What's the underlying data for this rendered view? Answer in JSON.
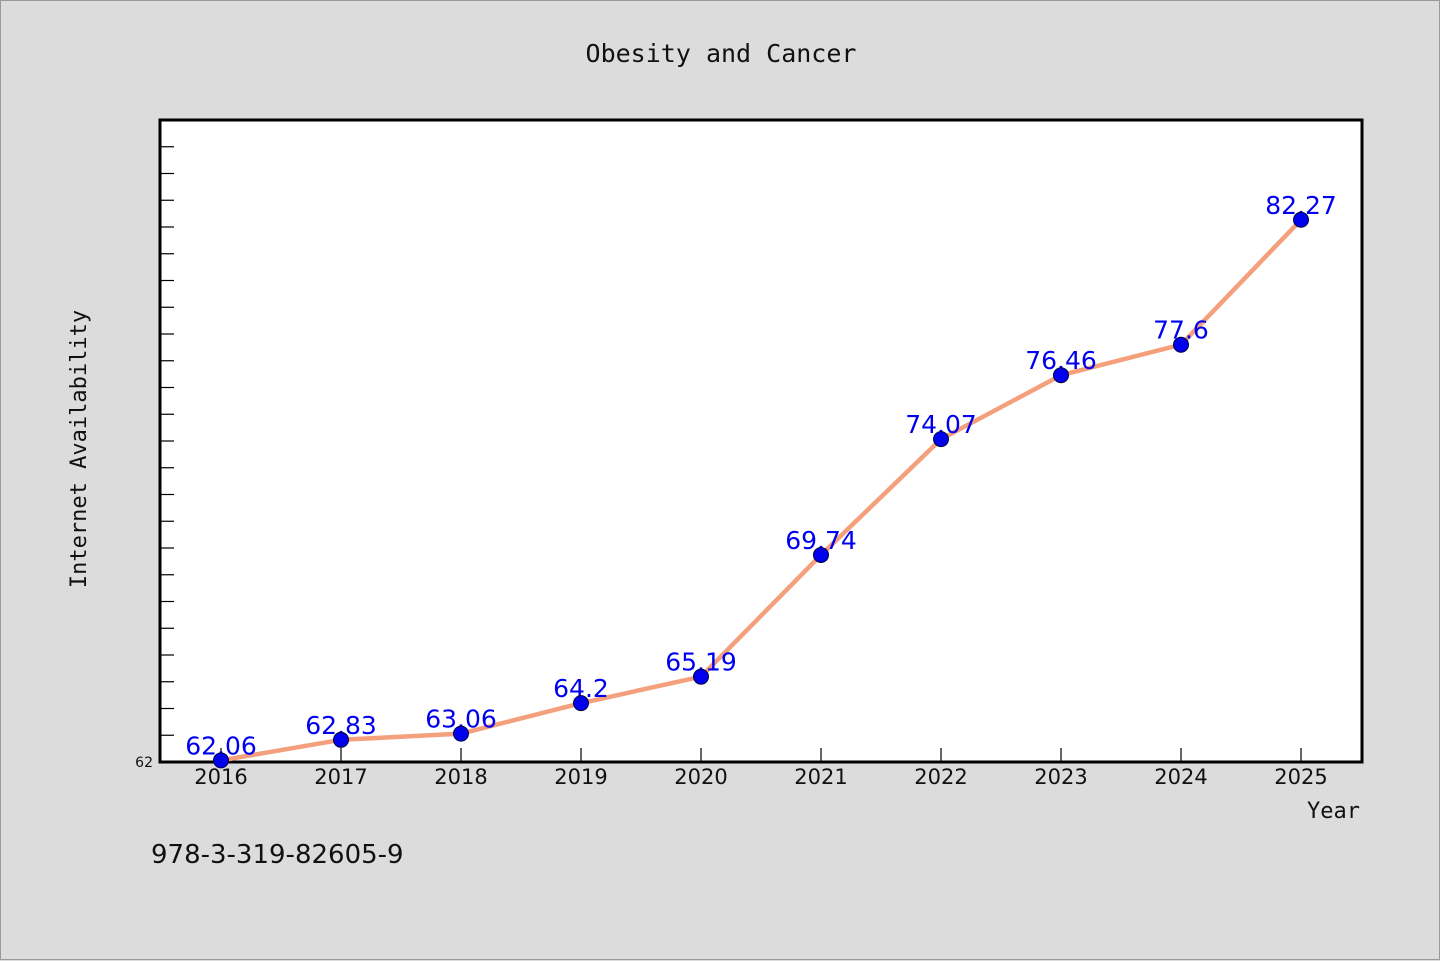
{
  "chart_data": {
    "type": "line",
    "title": "Obesity and Cancer",
    "xlabel": "Year",
    "ylabel": "Internet Availability",
    "categories": [
      "2016",
      "2017",
      "2018",
      "2019",
      "2020",
      "2021",
      "2022",
      "2023",
      "2024",
      "2025"
    ],
    "series": [
      {
        "values": [
          62.06,
          62.83,
          63.06,
          64.2,
          65.19,
          69.74,
          74.07,
          76.46,
          77.6,
          82.27
        ],
        "labels": [
          "62.06",
          "62.83",
          "63.06",
          "64.2",
          "65.19",
          "69.74",
          "74.07",
          "76.46",
          "77.6",
          "82.27"
        ],
        "line_color": "#f4a07c",
        "marker_color": "#0000ee"
      }
    ],
    "ylim": [
      62,
      86
    ],
    "yticks_labeled": [
      "62"
    ],
    "grid": false,
    "legend": "none"
  },
  "footer": {
    "isbn": "978-3-319-82605-9"
  }
}
